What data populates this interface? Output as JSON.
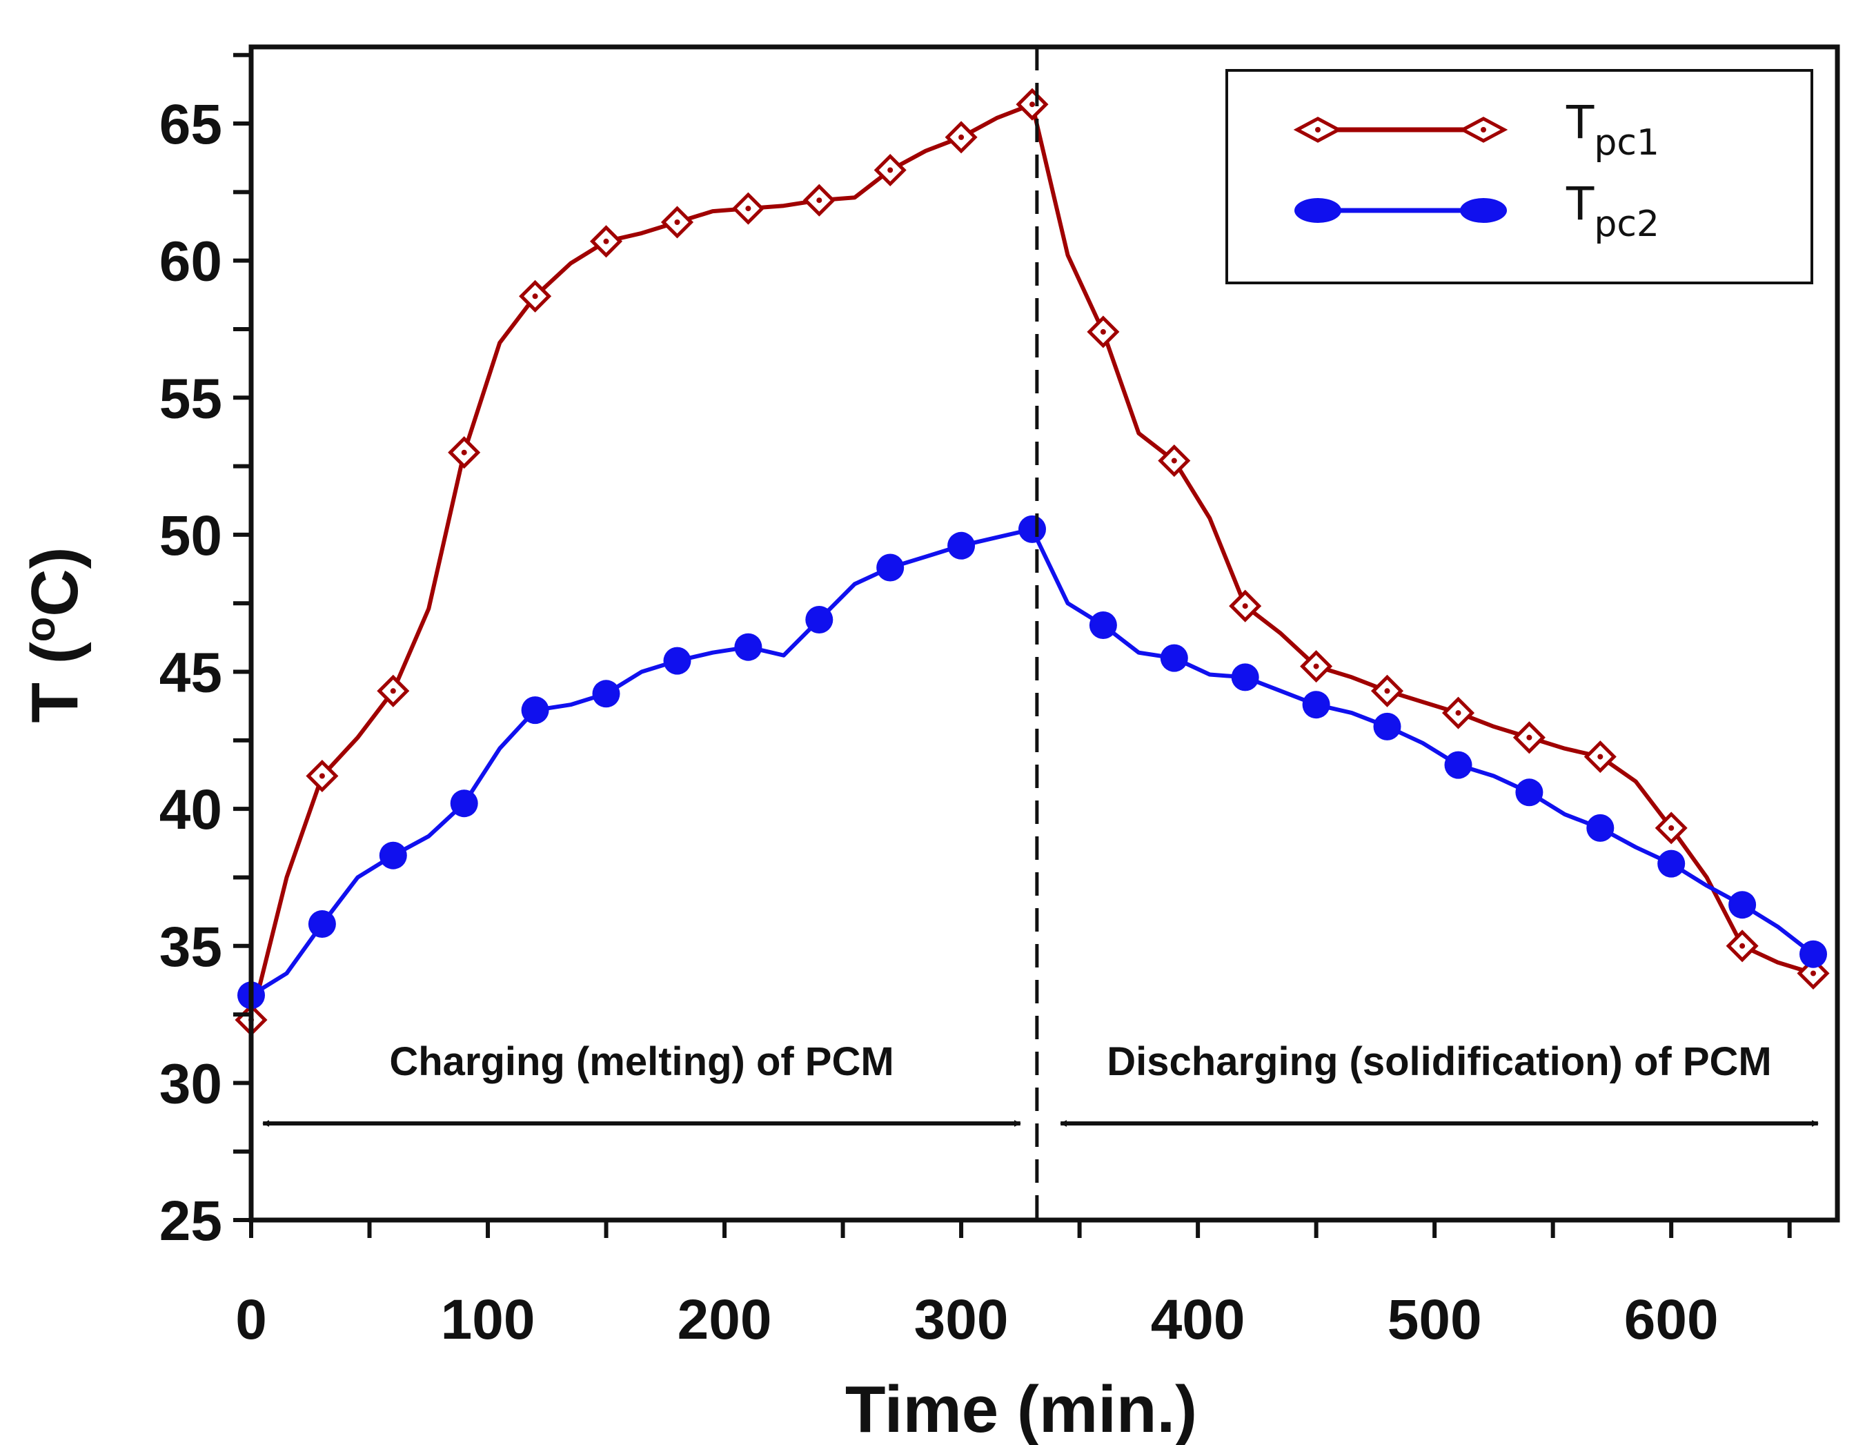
{
  "chart_data": {
    "type": "line",
    "xlabel": "Time (min.)",
    "ylabel": "T (",
    "ylabel_sup": "o",
    "ylabel_unit": "C)",
    "xlim": [
      0,
      670
    ],
    "ylim": [
      25,
      68
    ],
    "x_ticks": [
      "0",
      "100",
      "200",
      "300",
      "400",
      "500",
      "600"
    ],
    "x_tick_values": [
      0,
      100,
      200,
      300,
      400,
      500,
      600
    ],
    "y_ticks": [
      "25",
      "30",
      "35",
      "40",
      "45",
      "50",
      "55",
      "60",
      "65"
    ],
    "y_tick_values": [
      25,
      30,
      35,
      40,
      45,
      50,
      55,
      60,
      65
    ],
    "grid": false,
    "legend_position": "top-right",
    "divider_x": 332,
    "annotations": [
      {
        "text": "Charging (melting) of PCM",
        "x_from": 5,
        "x_to": 325
      },
      {
        "text": "Discharging (solidification) of PCM",
        "x_from": 342,
        "x_to": 662
      }
    ],
    "series": [
      {
        "name": "Tpc1",
        "name_main": "T",
        "name_sub": "pc1",
        "color": "#a00000",
        "marker": "diamond",
        "x": [
          0,
          15,
          30,
          45,
          60,
          75,
          90,
          105,
          120,
          135,
          150,
          165,
          180,
          195,
          210,
          225,
          240,
          255,
          270,
          285,
          300,
          315,
          330,
          345,
          360,
          375,
          390,
          405,
          420,
          435,
          450,
          465,
          480,
          495,
          510,
          525,
          540,
          555,
          570,
          585,
          600,
          615,
          630,
          645,
          660
        ],
        "y": [
          32.3,
          37.5,
          41.2,
          42.6,
          44.3,
          47.3,
          53.0,
          57.0,
          58.7,
          59.9,
          60.7,
          61.0,
          61.4,
          61.8,
          61.9,
          62.0,
          62.2,
          62.3,
          63.3,
          64.0,
          64.5,
          65.2,
          65.7,
          60.2,
          57.4,
          53.7,
          52.7,
          50.6,
          47.4,
          46.4,
          45.2,
          44.8,
          44.3,
          43.9,
          43.5,
          43.0,
          42.6,
          42.2,
          41.9,
          41.0,
          39.3,
          37.5,
          35.0,
          34.4,
          34.0
        ],
        "marker_x": [
          0,
          30,
          60,
          90,
          120,
          150,
          180,
          210,
          240,
          270,
          300,
          330,
          360,
          390,
          420,
          450,
          480,
          510,
          540,
          570,
          600,
          630,
          660
        ]
      },
      {
        "name": "Tpc2",
        "name_main": "T",
        "name_sub": "pc2",
        "color": "#1010ee",
        "marker": "circle",
        "x": [
          0,
          15,
          30,
          45,
          60,
          75,
          90,
          105,
          120,
          135,
          150,
          165,
          180,
          195,
          210,
          225,
          240,
          255,
          270,
          285,
          300,
          315,
          330,
          345,
          360,
          375,
          390,
          405,
          420,
          435,
          450,
          465,
          480,
          495,
          510,
          525,
          540,
          555,
          570,
          585,
          600,
          615,
          630,
          645,
          660
        ],
        "y": [
          33.2,
          34.0,
          35.8,
          37.5,
          38.3,
          39.0,
          40.2,
          42.2,
          43.6,
          43.8,
          44.2,
          45.0,
          45.4,
          45.7,
          45.9,
          45.6,
          46.9,
          48.2,
          48.8,
          49.2,
          49.6,
          49.9,
          50.2,
          47.5,
          46.7,
          45.7,
          45.5,
          44.9,
          44.8,
          44.3,
          43.8,
          43.5,
          43.0,
          42.4,
          41.6,
          41.2,
          40.6,
          39.8,
          39.3,
          38.6,
          38.0,
          37.2,
          36.5,
          35.7,
          34.7
        ],
        "marker_x": [
          0,
          30,
          60,
          90,
          120,
          150,
          180,
          210,
          240,
          270,
          300,
          330,
          360,
          390,
          420,
          450,
          480,
          510,
          540,
          570,
          600,
          630,
          660
        ]
      }
    ]
  }
}
